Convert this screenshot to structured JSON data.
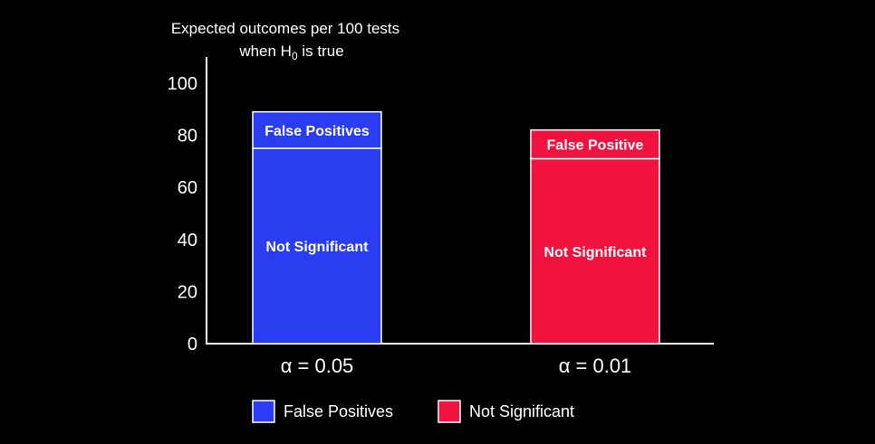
{
  "chart_data": {
    "type": "bar",
    "stacked": true,
    "title": "Expected outcomes per 100 tests",
    "subtitle_parts": {
      "prefix": "when H",
      "subscript": "0",
      "suffix": " is true"
    },
    "ylim": [
      0,
      100
    ],
    "yticks": [
      0,
      20,
      40,
      60,
      80,
      100
    ],
    "categories": [
      "α = 0.05",
      "α = 0.01"
    ],
    "grid": false,
    "legend_placement": "bottom",
    "bars": [
      {
        "category": "α = 0.05",
        "color": "#2b3df0",
        "segments": [
          {
            "label": "Not Significant",
            "value": 75
          },
          {
            "label": "False Positives",
            "value": 14
          }
        ]
      },
      {
        "category": "α = 0.01",
        "color": "#f0123f",
        "segments": [
          {
            "label": "Not Significant",
            "value": 71
          },
          {
            "label": "False Positive",
            "value": 11
          }
        ]
      }
    ],
    "legend": [
      {
        "name": "False Positives",
        "color": "#2b3df0"
      },
      {
        "name": "Not Significant",
        "color": "#f0123f"
      }
    ]
  }
}
